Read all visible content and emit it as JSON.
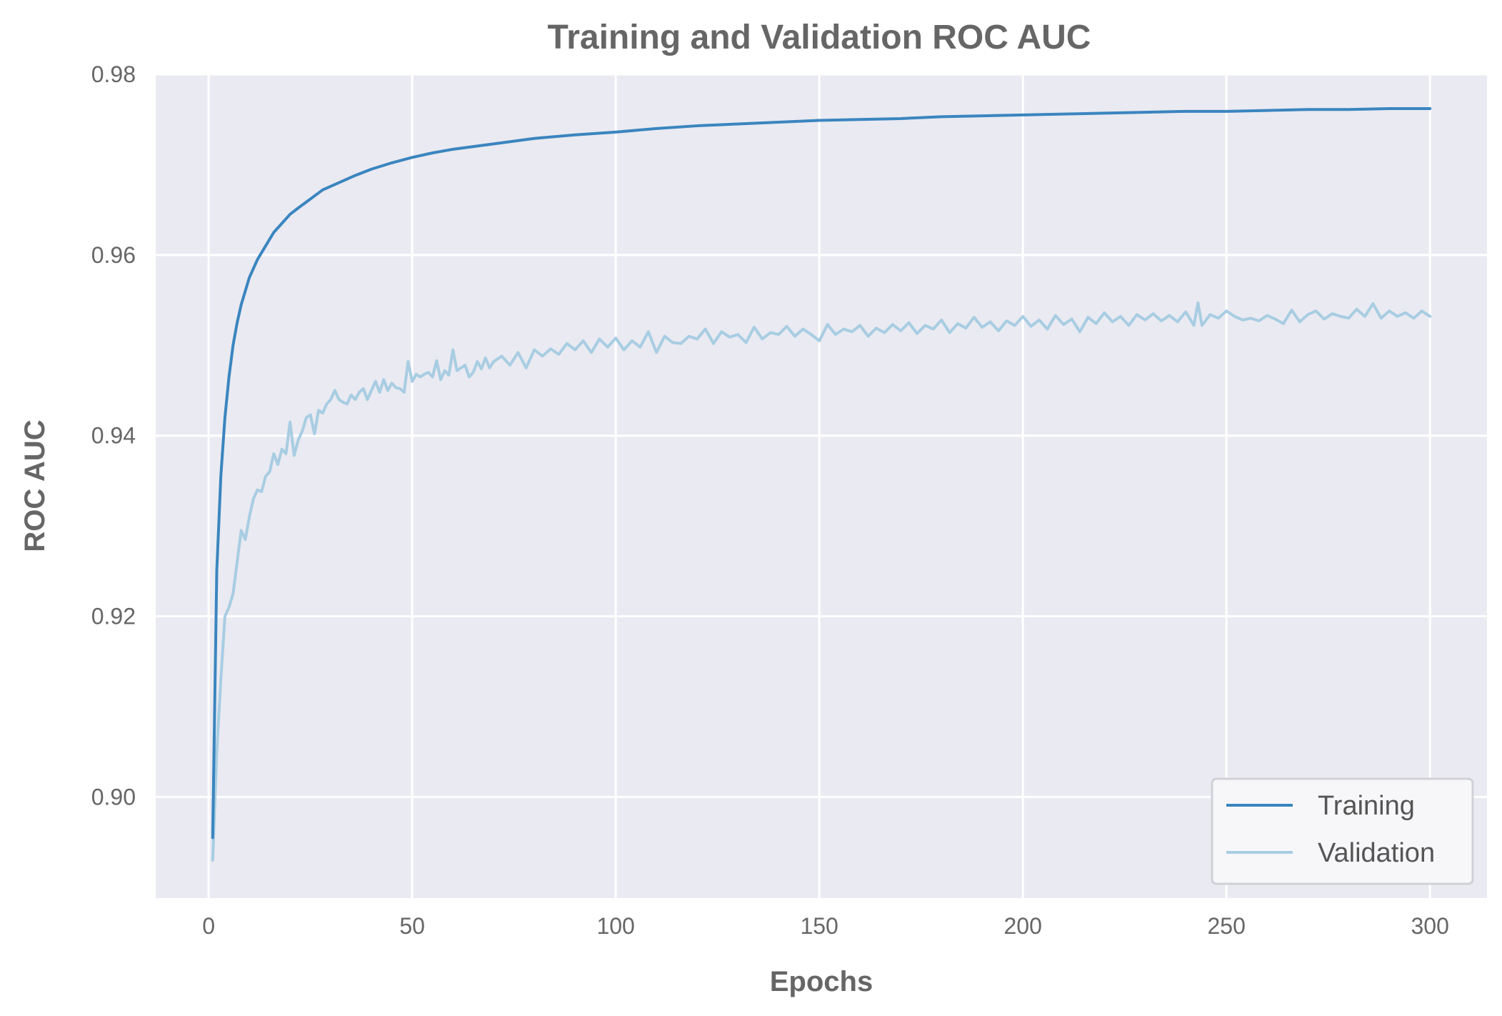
{
  "chart_data": {
    "type": "line",
    "title": "Training and Validation ROC AUC",
    "xlabel": "Epochs",
    "ylabel": "ROC AUC",
    "xlim": [
      -13,
      314
    ],
    "ylim": [
      0.8888,
      0.98
    ],
    "xticks": [
      0,
      50,
      100,
      150,
      200,
      250,
      300
    ],
    "xtick_labels": [
      "0",
      "50",
      "100",
      "150",
      "200",
      "250",
      "300"
    ],
    "yticks": [
      0.9,
      0.92,
      0.94,
      0.96,
      0.98
    ],
    "ytick_labels": [
      "0.90",
      "0.92",
      "0.94",
      "0.96",
      "0.98"
    ],
    "grid": true,
    "legend_position": "bottom-right",
    "series": [
      {
        "name": "Training",
        "color": "#3a85bf",
        "points": [
          [
            1,
            0.8955
          ],
          [
            2,
            0.925
          ],
          [
            3,
            0.9355
          ],
          [
            4,
            0.942
          ],
          [
            5,
            0.9465
          ],
          [
            6,
            0.95
          ],
          [
            7,
            0.9525
          ],
          [
            8,
            0.9545
          ],
          [
            9,
            0.956
          ],
          [
            10,
            0.9575
          ],
          [
            12,
            0.9595
          ],
          [
            14,
            0.961
          ],
          [
            16,
            0.9625
          ],
          [
            18,
            0.9635
          ],
          [
            20,
            0.9645
          ],
          [
            22,
            0.9652
          ],
          [
            25,
            0.9662
          ],
          [
            28,
            0.9672
          ],
          [
            32,
            0.968
          ],
          [
            36,
            0.9688
          ],
          [
            40,
            0.9695
          ],
          [
            45,
            0.9702
          ],
          [
            50,
            0.9708
          ],
          [
            55,
            0.9713
          ],
          [
            60,
            0.9717
          ],
          [
            70,
            0.9723
          ],
          [
            80,
            0.9729
          ],
          [
            90,
            0.9733
          ],
          [
            100,
            0.9736
          ],
          [
            110,
            0.974
          ],
          [
            120,
            0.9743
          ],
          [
            130,
            0.9745
          ],
          [
            140,
            0.9747
          ],
          [
            150,
            0.9749
          ],
          [
            160,
            0.975
          ],
          [
            170,
            0.9751
          ],
          [
            180,
            0.9753
          ],
          [
            190,
            0.9754
          ],
          [
            200,
            0.9755
          ],
          [
            210,
            0.9756
          ],
          [
            220,
            0.9757
          ],
          [
            230,
            0.9758
          ],
          [
            240,
            0.9759
          ],
          [
            250,
            0.9759
          ],
          [
            260,
            0.976
          ],
          [
            270,
            0.9761
          ],
          [
            280,
            0.9761
          ],
          [
            290,
            0.9762
          ],
          [
            300,
            0.9762
          ]
        ]
      },
      {
        "name": "Validation",
        "color": "#a8cde2",
        "points": [
          [
            1,
            0.893
          ],
          [
            2,
            0.905
          ],
          [
            3,
            0.913
          ],
          [
            4,
            0.92
          ],
          [
            5,
            0.921
          ],
          [
            6,
            0.9225
          ],
          [
            7,
            0.926
          ],
          [
            8,
            0.9295
          ],
          [
            9,
            0.9285
          ],
          [
            10,
            0.931
          ],
          [
            11,
            0.933
          ],
          [
            12,
            0.934
          ],
          [
            13,
            0.9338
          ],
          [
            14,
            0.9355
          ],
          [
            15,
            0.936
          ],
          [
            16,
            0.938
          ],
          [
            17,
            0.9368
          ],
          [
            18,
            0.9385
          ],
          [
            19,
            0.938
          ],
          [
            20,
            0.9415
          ],
          [
            21,
            0.9378
          ],
          [
            22,
            0.9395
          ],
          [
            23,
            0.9405
          ],
          [
            24,
            0.942
          ],
          [
            25,
            0.9423
          ],
          [
            26,
            0.9402
          ],
          [
            27,
            0.9428
          ],
          [
            28,
            0.9425
          ],
          [
            29,
            0.9435
          ],
          [
            30,
            0.944
          ],
          [
            31,
            0.945
          ],
          [
            32,
            0.944
          ],
          [
            33,
            0.9437
          ],
          [
            34,
            0.9435
          ],
          [
            35,
            0.9445
          ],
          [
            36,
            0.944
          ],
          [
            37,
            0.9448
          ],
          [
            38,
            0.9452
          ],
          [
            39,
            0.944
          ],
          [
            40,
            0.945
          ],
          [
            41,
            0.946
          ],
          [
            42,
            0.9448
          ],
          [
            43,
            0.9462
          ],
          [
            44,
            0.945
          ],
          [
            45,
            0.9458
          ],
          [
            46,
            0.9453
          ],
          [
            47,
            0.9452
          ],
          [
            48,
            0.9448
          ],
          [
            49,
            0.9482
          ],
          [
            50,
            0.946
          ],
          [
            51,
            0.9468
          ],
          [
            52,
            0.9465
          ],
          [
            53,
            0.9468
          ],
          [
            54,
            0.947
          ],
          [
            55,
            0.9465
          ],
          [
            56,
            0.9483
          ],
          [
            57,
            0.9462
          ],
          [
            58,
            0.9472
          ],
          [
            59,
            0.9467
          ],
          [
            60,
            0.9495
          ],
          [
            61,
            0.9472
          ],
          [
            62,
            0.9475
          ],
          [
            63,
            0.9478
          ],
          [
            64,
            0.9465
          ],
          [
            65,
            0.947
          ],
          [
            66,
            0.9482
          ],
          [
            67,
            0.9474
          ],
          [
            68,
            0.9486
          ],
          [
            69,
            0.9475
          ],
          [
            70,
            0.9482
          ],
          [
            72,
            0.9488
          ],
          [
            74,
            0.9478
          ],
          [
            76,
            0.9492
          ],
          [
            78,
            0.9475
          ],
          [
            80,
            0.9495
          ],
          [
            82,
            0.9488
          ],
          [
            84,
            0.9496
          ],
          [
            86,
            0.949
          ],
          [
            88,
            0.9502
          ],
          [
            90,
            0.9495
          ],
          [
            92,
            0.9505
          ],
          [
            94,
            0.9492
          ],
          [
            96,
            0.9507
          ],
          [
            98,
            0.9498
          ],
          [
            100,
            0.9508
          ],
          [
            102,
            0.9495
          ],
          [
            104,
            0.9505
          ],
          [
            106,
            0.9498
          ],
          [
            108,
            0.9515
          ],
          [
            110,
            0.9492
          ],
          [
            112,
            0.951
          ],
          [
            114,
            0.9503
          ],
          [
            116,
            0.9502
          ],
          [
            118,
            0.951
          ],
          [
            120,
            0.9507
          ],
          [
            122,
            0.9518
          ],
          [
            124,
            0.9502
          ],
          [
            126,
            0.9515
          ],
          [
            128,
            0.9509
          ],
          [
            130,
            0.9512
          ],
          [
            132,
            0.9503
          ],
          [
            134,
            0.952
          ],
          [
            136,
            0.9507
          ],
          [
            138,
            0.9514
          ],
          [
            140,
            0.9512
          ],
          [
            142,
            0.9521
          ],
          [
            144,
            0.951
          ],
          [
            146,
            0.9518
          ],
          [
            148,
            0.9512
          ],
          [
            150,
            0.9505
          ],
          [
            152,
            0.9523
          ],
          [
            154,
            0.9512
          ],
          [
            156,
            0.9518
          ],
          [
            158,
            0.9515
          ],
          [
            160,
            0.9522
          ],
          [
            162,
            0.951
          ],
          [
            164,
            0.9519
          ],
          [
            166,
            0.9514
          ],
          [
            168,
            0.9523
          ],
          [
            170,
            0.9516
          ],
          [
            172,
            0.9525
          ],
          [
            174,
            0.9513
          ],
          [
            176,
            0.9522
          ],
          [
            178,
            0.9518
          ],
          [
            180,
            0.9528
          ],
          [
            182,
            0.9514
          ],
          [
            184,
            0.9524
          ],
          [
            186,
            0.9519
          ],
          [
            188,
            0.9531
          ],
          [
            190,
            0.952
          ],
          [
            192,
            0.9526
          ],
          [
            194,
            0.9516
          ],
          [
            196,
            0.9527
          ],
          [
            198,
            0.9522
          ],
          [
            200,
            0.9532
          ],
          [
            202,
            0.9521
          ],
          [
            204,
            0.9528
          ],
          [
            206,
            0.9518
          ],
          [
            208,
            0.9533
          ],
          [
            210,
            0.9523
          ],
          [
            212,
            0.9529
          ],
          [
            214,
            0.9515
          ],
          [
            216,
            0.9531
          ],
          [
            218,
            0.9524
          ],
          [
            220,
            0.9536
          ],
          [
            222,
            0.9526
          ],
          [
            224,
            0.9532
          ],
          [
            226,
            0.9522
          ],
          [
            228,
            0.9534
          ],
          [
            230,
            0.9528
          ],
          [
            232,
            0.9535
          ],
          [
            234,
            0.9527
          ],
          [
            236,
            0.9533
          ],
          [
            238,
            0.9526
          ],
          [
            240,
            0.9537
          ],
          [
            242,
            0.9522
          ],
          [
            243,
            0.9547
          ],
          [
            244,
            0.9522
          ],
          [
            246,
            0.9534
          ],
          [
            248,
            0.953
          ],
          [
            250,
            0.9538
          ],
          [
            252,
            0.9532
          ],
          [
            254,
            0.9528
          ],
          [
            256,
            0.953
          ],
          [
            258,
            0.9527
          ],
          [
            260,
            0.9533
          ],
          [
            262,
            0.9529
          ],
          [
            264,
            0.9524
          ],
          [
            266,
            0.9539
          ],
          [
            268,
            0.9526
          ],
          [
            270,
            0.9534
          ],
          [
            272,
            0.9538
          ],
          [
            274,
            0.9529
          ],
          [
            276,
            0.9535
          ],
          [
            278,
            0.9532
          ],
          [
            280,
            0.953
          ],
          [
            282,
            0.954
          ],
          [
            284,
            0.9532
          ],
          [
            286,
            0.9546
          ],
          [
            288,
            0.953
          ],
          [
            290,
            0.9538
          ],
          [
            292,
            0.9532
          ],
          [
            294,
            0.9536
          ],
          [
            296,
            0.953
          ],
          [
            298,
            0.9538
          ],
          [
            300,
            0.9532
          ]
        ]
      }
    ]
  }
}
